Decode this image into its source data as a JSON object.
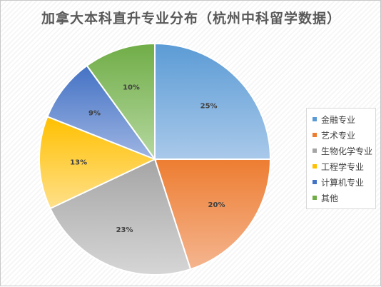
{
  "title": "加拿大本科直升专业分布（杭州中科留学数据）",
  "chart_data": {
    "type": "pie",
    "title": "加拿大本科直升专业分布（杭州中科留学数据）",
    "slices": [
      {
        "name": "金融专业",
        "value": 25,
        "label": "25%",
        "color": "#5B9BD5",
        "color_light": "#A9C9EA"
      },
      {
        "name": "艺术专业",
        "value": 20,
        "label": "20%",
        "color": "#ED7D31",
        "color_light": "#F5B58F"
      },
      {
        "name": "生物化学专业",
        "value": 23,
        "label": "23%",
        "color": "#A5A5A5",
        "color_light": "#D6D6D6"
      },
      {
        "name": "工程学专业",
        "value": 13,
        "label": "13%",
        "color": "#FFC000",
        "color_light": "#FFE08A"
      },
      {
        "name": "计算机专业",
        "value": 9,
        "label": "9%",
        "color": "#4472C4",
        "color_light": "#9EB5E3"
      },
      {
        "name": "其他",
        "value": 10,
        "label": "10%",
        "color": "#70AD47",
        "color_light": "#B5D8A0"
      }
    ],
    "start_angle_deg": 0,
    "direction": "clockwise",
    "legend_position": "right"
  }
}
